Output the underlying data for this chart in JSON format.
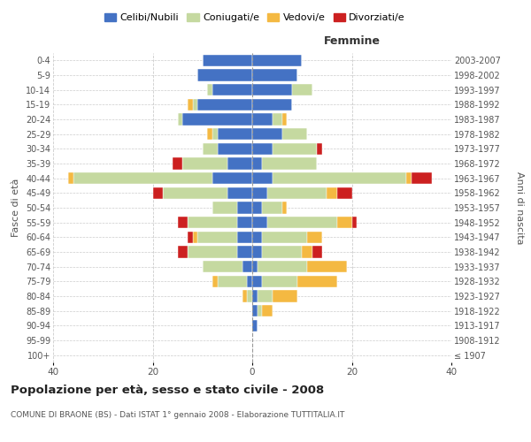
{
  "age_groups": [
    "100+",
    "95-99",
    "90-94",
    "85-89",
    "80-84",
    "75-79",
    "70-74",
    "65-69",
    "60-64",
    "55-59",
    "50-54",
    "45-49",
    "40-44",
    "35-39",
    "30-34",
    "25-29",
    "20-24",
    "15-19",
    "10-14",
    "5-9",
    "0-4"
  ],
  "birth_years": [
    "≤ 1907",
    "1908-1912",
    "1913-1917",
    "1918-1922",
    "1923-1927",
    "1928-1932",
    "1933-1937",
    "1938-1942",
    "1943-1947",
    "1948-1952",
    "1953-1957",
    "1958-1962",
    "1963-1967",
    "1968-1972",
    "1973-1977",
    "1978-1982",
    "1983-1987",
    "1988-1992",
    "1993-1997",
    "1998-2002",
    "2003-2007"
  ],
  "colors": {
    "celibe": "#4472C4",
    "coniugato": "#C5D9A0",
    "vedovo": "#F4B942",
    "divorziato": "#CC2020"
  },
  "males": {
    "celibe": [
      0,
      0,
      0,
      0,
      0,
      1,
      2,
      3,
      3,
      3,
      3,
      5,
      8,
      5,
      7,
      7,
      14,
      11,
      8,
      11,
      10
    ],
    "coniugato": [
      0,
      0,
      0,
      0,
      1,
      6,
      8,
      10,
      8,
      10,
      5,
      13,
      28,
      9,
      3,
      1,
      1,
      1,
      1,
      0,
      0
    ],
    "vedovo": [
      0,
      0,
      0,
      0,
      1,
      1,
      0,
      0,
      1,
      0,
      0,
      0,
      1,
      0,
      0,
      1,
      0,
      1,
      0,
      0,
      0
    ],
    "divorziato": [
      0,
      0,
      0,
      0,
      0,
      0,
      0,
      2,
      1,
      2,
      0,
      2,
      0,
      2,
      0,
      0,
      0,
      0,
      0,
      0,
      0
    ]
  },
  "females": {
    "celibe": [
      0,
      0,
      1,
      1,
      1,
      2,
      1,
      2,
      2,
      3,
      2,
      3,
      4,
      2,
      4,
      6,
      4,
      8,
      8,
      9,
      10
    ],
    "coniugato": [
      0,
      0,
      0,
      1,
      3,
      7,
      10,
      8,
      9,
      14,
      4,
      12,
      27,
      11,
      9,
      5,
      2,
      0,
      4,
      0,
      0
    ],
    "vedovo": [
      0,
      0,
      0,
      2,
      5,
      8,
      8,
      2,
      3,
      3,
      1,
      2,
      1,
      0,
      0,
      0,
      1,
      0,
      0,
      0,
      0
    ],
    "divorziato": [
      0,
      0,
      0,
      0,
      0,
      0,
      0,
      2,
      0,
      1,
      0,
      3,
      4,
      0,
      1,
      0,
      0,
      0,
      0,
      0,
      0
    ]
  },
  "title": "Popolazione per età, sesso e stato civile - 2008",
  "subtitle": "COMUNE DI BRAONE (BS) - Dati ISTAT 1° gennaio 2008 - Elaborazione TUTTITALIA.IT",
  "ylabel_left": "Fasce di età",
  "ylabel_right": "Anni di nascita",
  "xlim": 40,
  "bg_color": "#ffffff",
  "grid_color": "#cccccc",
  "legend_labels": [
    "Celibi/Nubili",
    "Coniugati/e",
    "Vedovi/e",
    "Divorziati/e"
  ]
}
